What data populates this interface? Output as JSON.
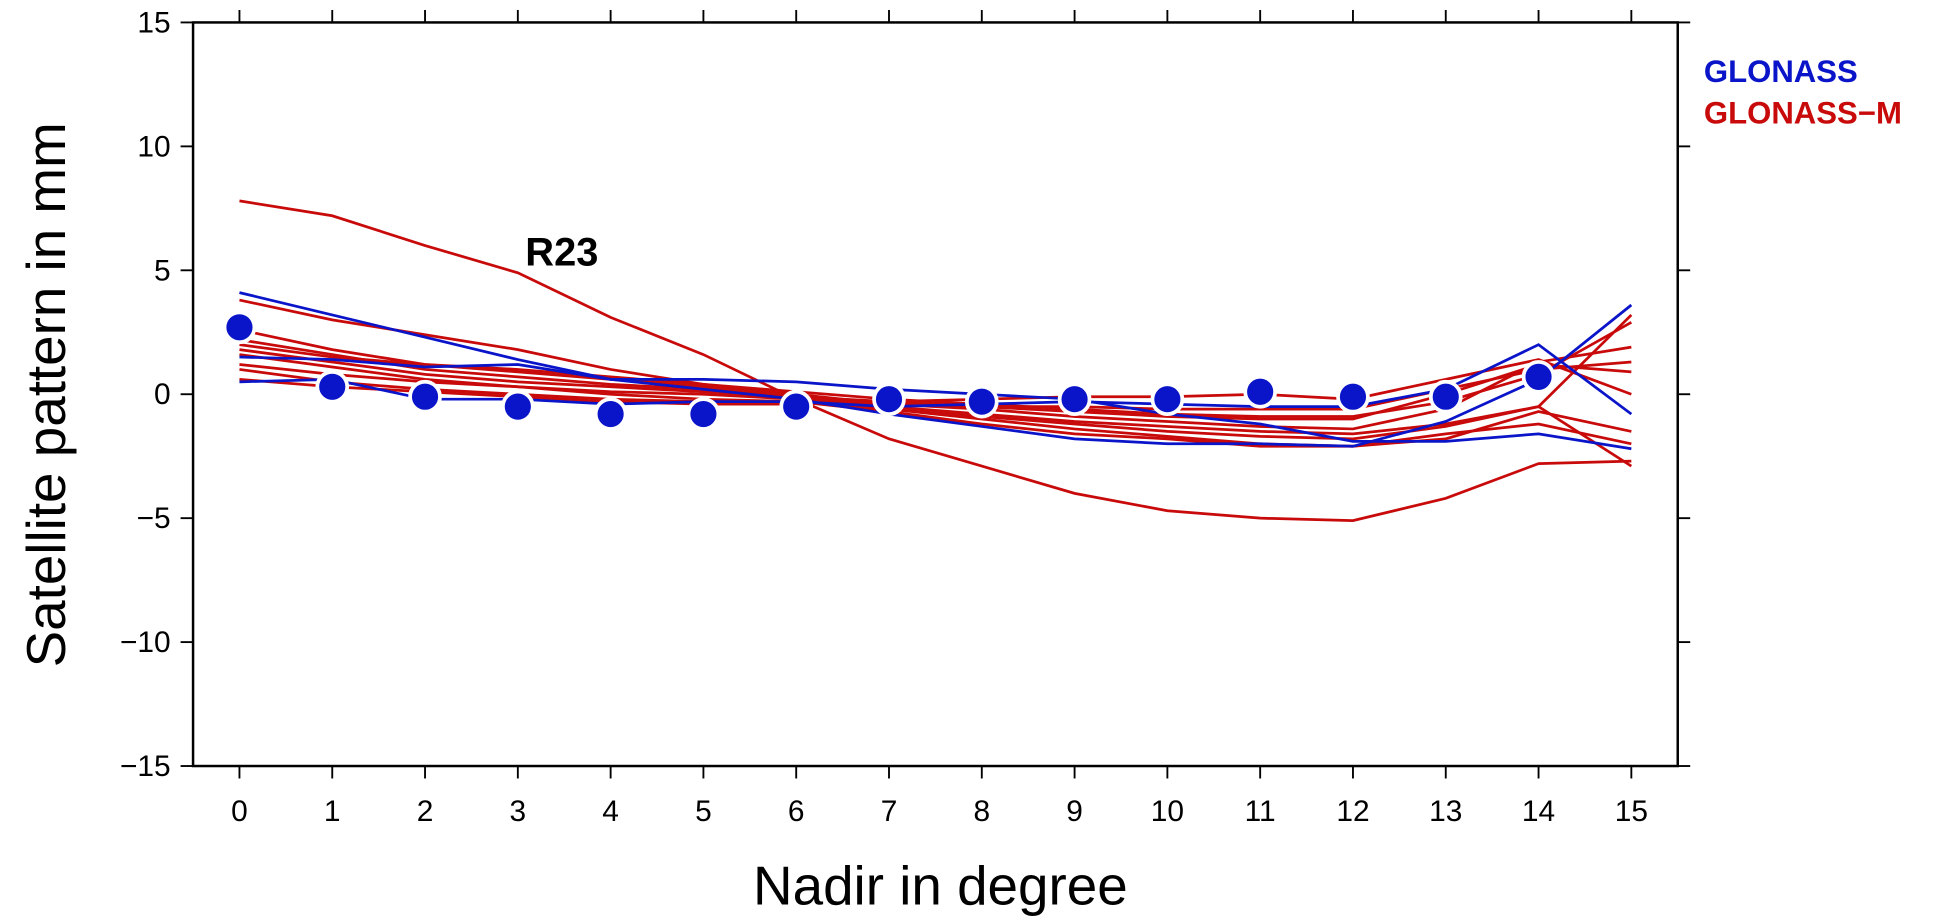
{
  "chart_data": {
    "type": "line",
    "xlabel": "Nadir in degree",
    "ylabel": "Satellite pattern in mm",
    "x": [
      0,
      1,
      2,
      3,
      4,
      5,
      6,
      7,
      8,
      9,
      10,
      11,
      12,
      13,
      14,
      15
    ],
    "xlim": [
      -0.5,
      15.5
    ],
    "ylim": [
      -15,
      15
    ],
    "xticks": [
      0,
      1,
      2,
      3,
      4,
      5,
      6,
      7,
      8,
      9,
      10,
      11,
      12,
      13,
      14,
      15
    ],
    "yticks": [
      {
        "value": -15,
        "label": "−15"
      },
      {
        "value": -10,
        "label": "−10"
      },
      {
        "value": -5,
        "label": "−5"
      },
      0,
      5,
      10,
      15
    ],
    "series": [
      {
        "name": "GLONASS",
        "color": "#0a14c8",
        "lines": [
          [
            4.1,
            3.2,
            2.3,
            1.4,
            0.6,
            0.2,
            -0.2,
            -0.8,
            -1.3,
            -1.8,
            -2.0,
            -2.0,
            -2.1,
            -1.1,
            0.6,
            3.6
          ],
          [
            0.5,
            0.6,
            -0.2,
            -0.2,
            -0.4,
            -0.3,
            -0.3,
            -0.5,
            -0.4,
            -0.3,
            -0.4,
            -0.5,
            -0.5,
            0.2,
            2.0,
            -0.8
          ],
          [
            1.5,
            1.4,
            1.1,
            1.2,
            0.6,
            0.6,
            0.5,
            0.2,
            0.0,
            -0.2,
            -0.8,
            -1.2,
            -1.9,
            -1.9,
            -1.6,
            -2.2
          ]
        ]
      },
      {
        "name": "GLONASS−M",
        "color": "#c80a0a",
        "lines": [
          [
            7.8,
            7.2,
            6.0,
            4.9,
            3.1,
            1.6,
            -0.2,
            -1.8,
            -2.9,
            -4.0,
            -4.7,
            -5.0,
            -5.1,
            -4.2,
            -2.8,
            -2.7
          ],
          [
            3.8,
            3.0,
            2.4,
            1.8,
            1.0,
            0.4,
            0.0,
            -0.6,
            -0.9,
            -1.2,
            -1.5,
            -1.7,
            -1.8,
            -1.3,
            -0.5,
            3.2
          ],
          [
            2.6,
            1.8,
            1.2,
            0.9,
            0.6,
            0.3,
            0.0,
            -0.4,
            -0.6,
            -0.9,
            -1.1,
            -1.3,
            -1.4,
            -0.6,
            1.3,
            1.9
          ],
          [
            2.2,
            1.6,
            1.0,
            0.7,
            0.4,
            0.2,
            -0.1,
            -0.5,
            -0.8,
            -1.1,
            -1.3,
            -1.5,
            -1.6,
            -1.2,
            -0.5,
            -2.9
          ],
          [
            1.8,
            1.3,
            0.8,
            0.5,
            0.3,
            0.1,
            -0.1,
            -0.3,
            -0.5,
            -0.7,
            -0.9,
            -1.0,
            -1.0,
            0.0,
            1.2,
            0.9
          ],
          [
            1.2,
            0.8,
            0.5,
            0.3,
            0.1,
            0.0,
            -0.2,
            -0.6,
            -1.0,
            -1.4,
            -1.7,
            -2.0,
            -2.1,
            -1.6,
            -1.2,
            -2.0
          ],
          [
            1.0,
            0.5,
            0.2,
            0.0,
            -0.2,
            -0.3,
            -0.3,
            -0.4,
            -0.5,
            -0.5,
            -0.6,
            -0.6,
            -0.6,
            0.2,
            1.0,
            1.3
          ],
          [
            0.6,
            0.3,
            0.1,
            -0.1,
            -0.3,
            -0.4,
            -0.4,
            -0.3,
            -0.2,
            -0.1,
            -0.1,
            0.0,
            -0.2,
            0.6,
            1.4,
            0.0
          ],
          [
            1.6,
            1.1,
            0.6,
            0.3,
            0.0,
            -0.2,
            -0.3,
            -0.7,
            -1.2,
            -1.6,
            -1.8,
            -2.1,
            -2.1,
            -1.8,
            -0.7,
            -1.5
          ],
          [
            2.0,
            1.5,
            1.2,
            1.0,
            0.7,
            0.4,
            0.1,
            -0.2,
            -0.4,
            -0.6,
            -0.8,
            -0.9,
            -0.9,
            -0.3,
            0.8,
            2.9
          ]
        ]
      }
    ],
    "mean_points": {
      "color": "#0a14c8",
      "values": [
        2.7,
        0.3,
        -0.1,
        -0.5,
        -0.8,
        -0.8,
        -0.5,
        -0.2,
        -0.3,
        -0.2,
        -0.2,
        0.1,
        -0.1,
        -0.1,
        0.7,
        null
      ]
    },
    "annotation": {
      "text": "R23",
      "x": 3,
      "y": 5.8
    }
  }
}
